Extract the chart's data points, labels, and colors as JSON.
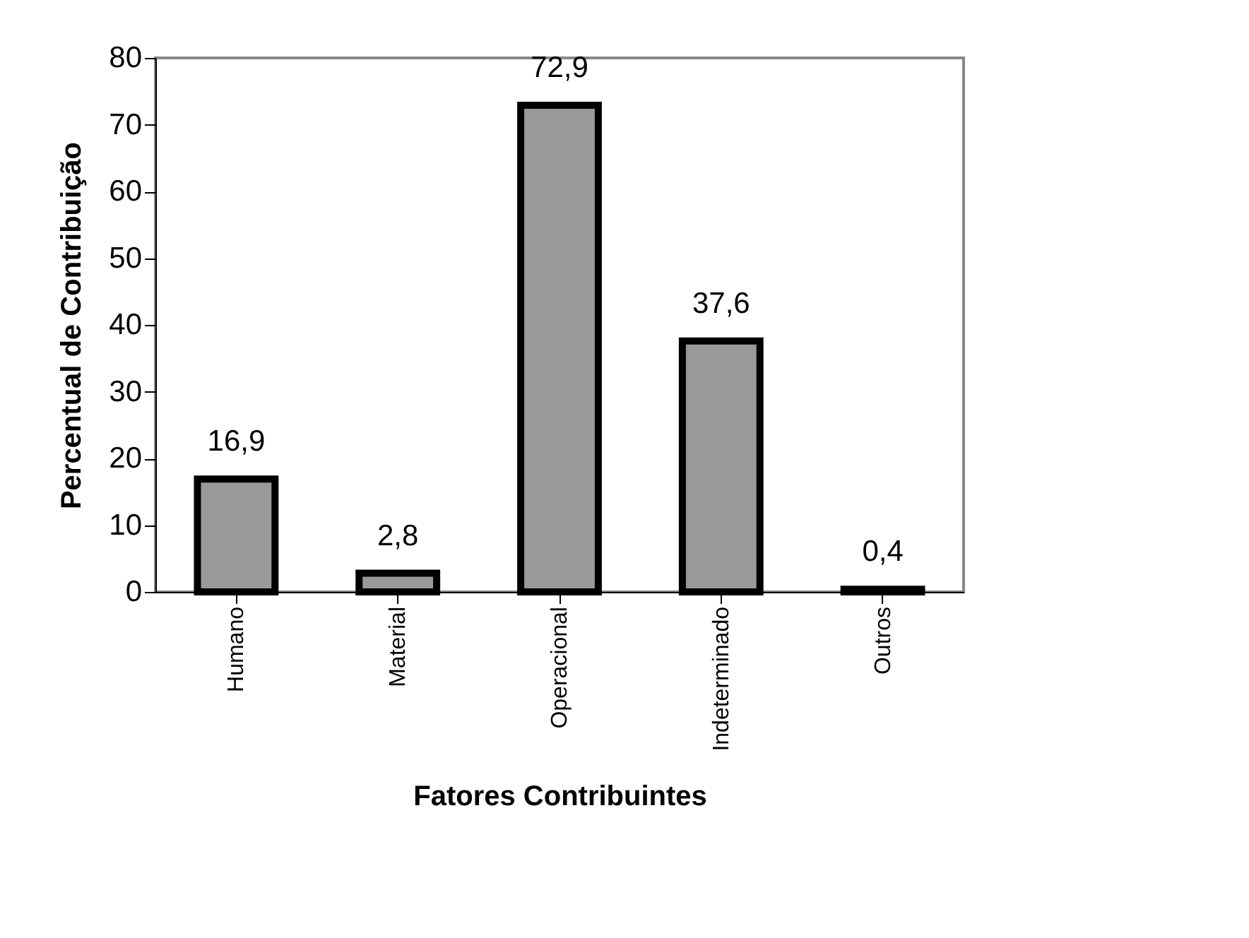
{
  "chart_data": {
    "type": "bar",
    "xlabel": "Fatores Contribuintes",
    "ylabel": "Percentual de Contribuição",
    "categories": [
      "Humano",
      "Material",
      "Operacional",
      "Indeterminado",
      "Outros"
    ],
    "values": [
      16.9,
      2.8,
      72.9,
      37.6,
      0.4
    ],
    "value_labels": [
      "16,9",
      "2,8",
      "72,9",
      "37,6",
      "0,4"
    ],
    "color": "#999999",
    "ylim": [
      0,
      80
    ],
    "yticks": [
      0,
      10,
      20,
      30,
      40,
      50,
      60,
      70,
      80
    ],
    "grid": false
  }
}
